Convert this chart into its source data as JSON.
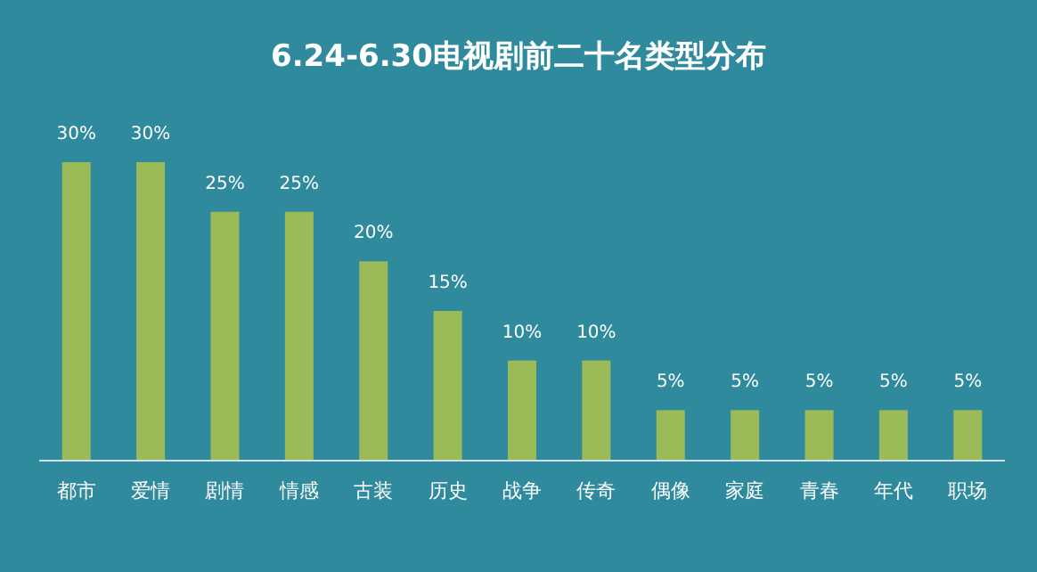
{
  "chart_data": {
    "type": "bar",
    "title": "6.24-6.30电视剧前二十名类型分布",
    "categories": [
      "都市",
      "爱情",
      "剧情",
      "情感",
      "古装",
      "历史",
      "战争",
      "传奇",
      "偶像",
      "家庭",
      "青春",
      "年代",
      "职场"
    ],
    "values": [
      30,
      30,
      25,
      25,
      20,
      15,
      10,
      10,
      5,
      5,
      5,
      5,
      5
    ],
    "value_labels": [
      "30%",
      "30%",
      "25%",
      "25%",
      "20%",
      "15%",
      "10%",
      "10%",
      "5%",
      "5%",
      "5%",
      "5%",
      "5%"
    ],
    "color": "#9bbb59"
  }
}
